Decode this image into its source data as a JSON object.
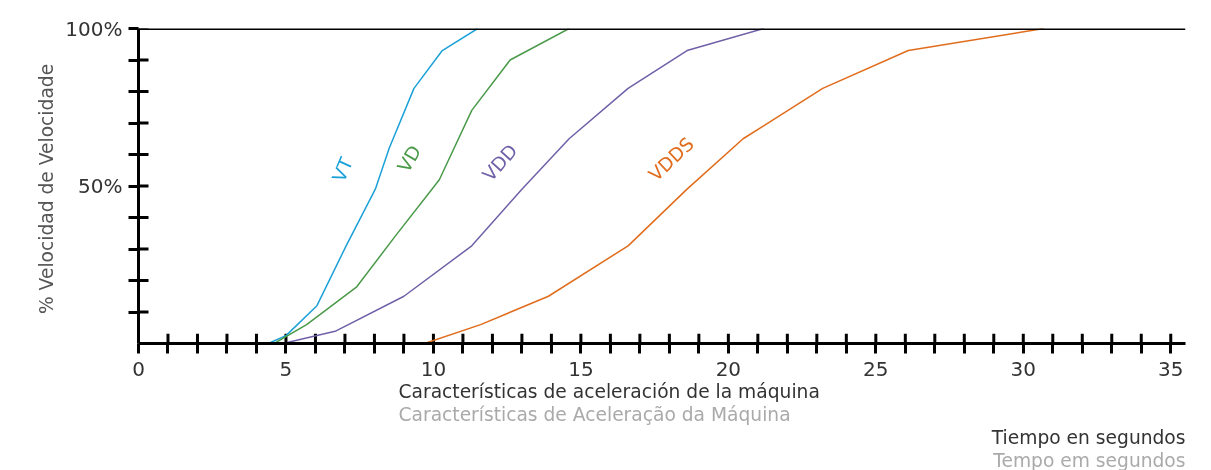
{
  "chart_data": {
    "type": "line",
    "ylabel": "% Velocidad  de Velocidade",
    "annotations": [
      "Características de aceleración de la máquina",
      "Características de Aceleração da Máquina",
      "Tiempo en segundos",
      "Tempo em segundos"
    ],
    "xlim": [
      0,
      35.5
    ],
    "ylim": [
      0,
      100
    ],
    "xticks": [
      0,
      {
        "value": 1,
        "label": null
      },
      {
        "value": 2,
        "label": null
      },
      {
        "value": 3,
        "label": null
      },
      {
        "value": 4,
        "label": null
      },
      5,
      {
        "value": 6,
        "label": null
      },
      {
        "value": 7,
        "label": null
      },
      {
        "value": 8,
        "label": null
      },
      {
        "value": 9,
        "label": null
      },
      10,
      {
        "value": 11,
        "label": null
      },
      {
        "value": 12,
        "label": null
      },
      {
        "value": 13,
        "label": null
      },
      {
        "value": 14,
        "label": null
      },
      15,
      {
        "value": 16,
        "label": null
      },
      {
        "value": 17,
        "label": null
      },
      {
        "value": 18,
        "label": null
      },
      {
        "value": 19,
        "label": null
      },
      20,
      {
        "value": 21,
        "label": null
      },
      {
        "value": 22,
        "label": null
      },
      {
        "value": 23,
        "label": null
      },
      {
        "value": 24,
        "label": null
      },
      25,
      {
        "value": 26,
        "label": null
      },
      {
        "value": 27,
        "label": null
      },
      {
        "value": 28,
        "label": null
      },
      {
        "value": 29,
        "label": null
      },
      30,
      {
        "value": 31,
        "label": null
      },
      {
        "value": 32,
        "label": null
      },
      {
        "value": 33,
        "label": null
      },
      {
        "value": 34,
        "label": null
      },
      35
    ],
    "yticks": [
      {
        "value": 10,
        "label": null
      },
      {
        "value": 20,
        "label": null
      },
      {
        "value": 30,
        "label": null
      },
      {
        "value": 40,
        "label": null
      },
      {
        "value": 50,
        "label": "50%"
      },
      {
        "value": 60,
        "label": null
      },
      {
        "value": 70,
        "label": null
      },
      {
        "value": 80,
        "label": null
      },
      {
        "value": 90,
        "label": null
      },
      {
        "value": 100,
        "label": "100%"
      }
    ],
    "grid": false,
    "marker": "none",
    "line_style": "solid",
    "ref_lines": [
      {
        "axis": "y",
        "value": 100,
        "color": "#000000"
      }
    ],
    "series": [
      {
        "name": "VT",
        "color": "#1ba1d8",
        "x": [
          4.4,
          5,
          6.05,
          7.04,
          8.03,
          8.5,
          9.34,
          10.3,
          11.5
        ],
        "values": [
          0,
          2.5,
          12,
          31,
          49,
          62,
          81,
          93,
          100
        ]
      },
      {
        "name": "VD",
        "color": "#4a9a4a",
        "x": [
          4.6,
          5.7,
          7.4,
          8.7,
          10.2,
          11.3,
          12.6,
          14.6
        ],
        "values": [
          0,
          6,
          18,
          34,
          52,
          74,
          90,
          100
        ]
      },
      {
        "name": "VDD",
        "color": "#7060a8",
        "x": [
          4.9,
          6.7,
          9.0,
          11.3,
          13.0,
          14.6,
          16.6,
          18.6,
          21.2
        ],
        "values": [
          0,
          4,
          15,
          31,
          49,
          65,
          81,
          93,
          100
        ]
      },
      {
        "name": "VDDS",
        "color": "#e06c1c",
        "x": [
          9.7,
          11.6,
          13.9,
          16.6,
          18.6,
          20.5,
          23.2,
          26.1,
          30.7
        ],
        "values": [
          0,
          6,
          15,
          31,
          49,
          65,
          81,
          93,
          100
        ]
      }
    ]
  }
}
